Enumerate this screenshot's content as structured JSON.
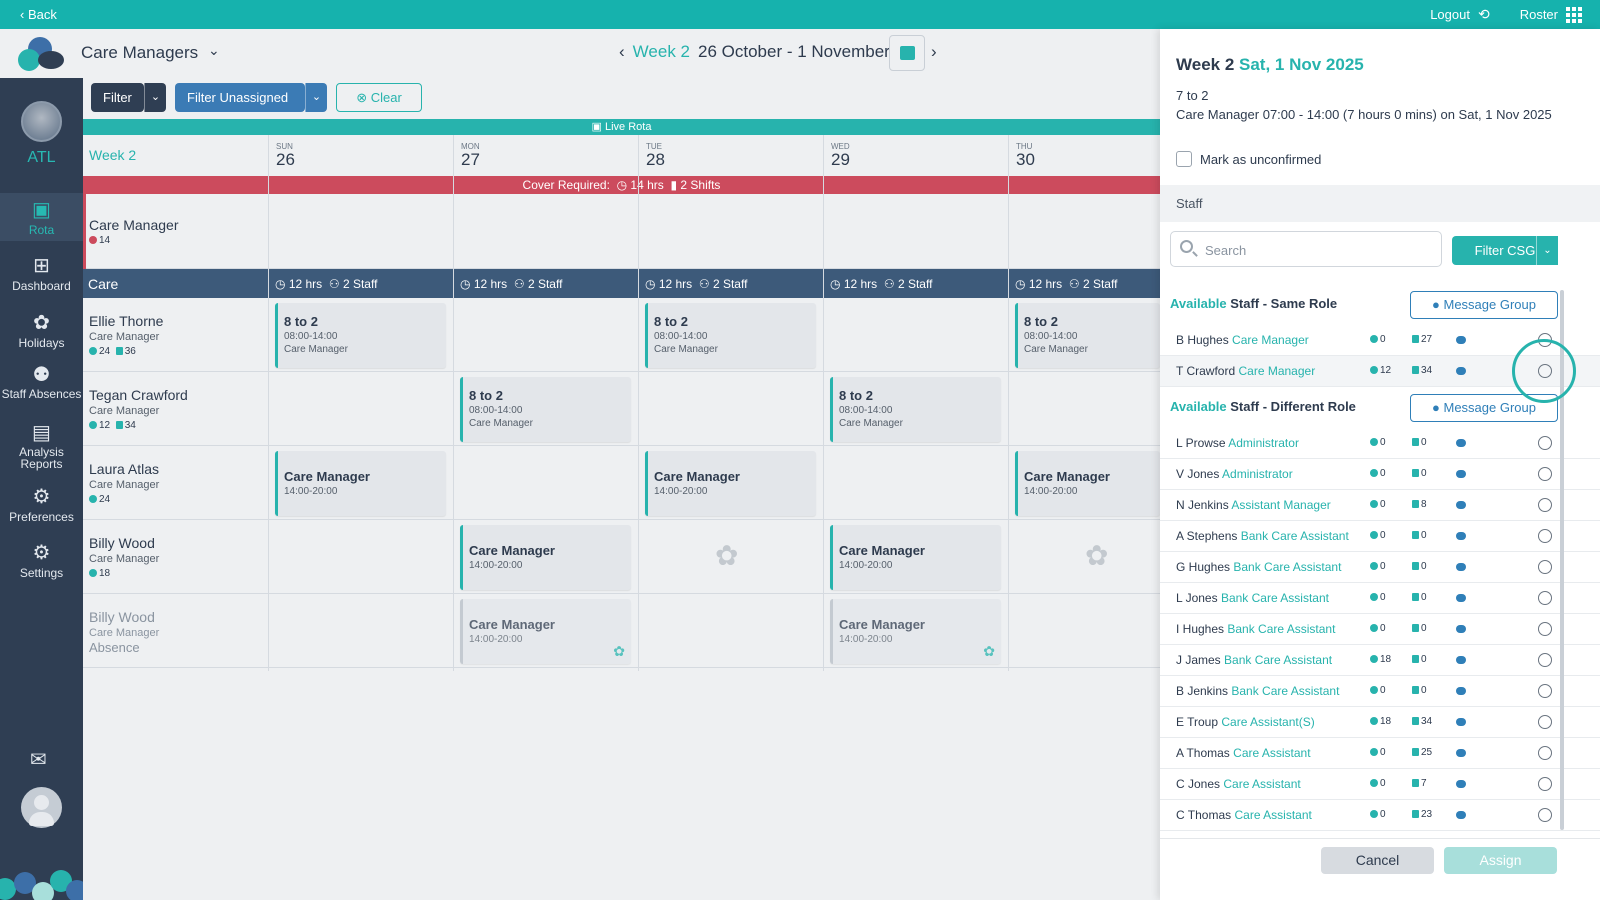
{
  "topbar": {
    "back_label": "‹ Back",
    "logout_label": "Logout",
    "roster_label": "Roster"
  },
  "sidebar": {
    "org_code": "ATL",
    "items": [
      {
        "label": "Rota",
        "icon": "calendar-check-icon"
      },
      {
        "label": "Dashboard",
        "icon": "dashboard-icon"
      },
      {
        "label": "Holidays",
        "icon": "palm-tree-icon"
      },
      {
        "label": "Staff Absences",
        "icon": "staff-absence-icon"
      },
      {
        "label": "Analysis Reports",
        "icon": "report-icon"
      },
      {
        "label": "Preferences",
        "icon": "user-preferences-icon"
      },
      {
        "label": "Settings",
        "icon": "gear-icon"
      }
    ]
  },
  "header": {
    "group": "Care Managers",
    "week": "Week 2",
    "range": "26 October - 1 November"
  },
  "filters": {
    "filter": "Filter",
    "filter_unassigned": "Filter Unassigned",
    "clear": "Clear"
  },
  "rota": {
    "live": "Live Rota",
    "week_label": "Week 2",
    "days": [
      {
        "name": "SUN",
        "date": "26"
      },
      {
        "name": "MON",
        "date": "27"
      },
      {
        "name": "TUE",
        "date": "28"
      },
      {
        "name": "WED",
        "date": "29"
      },
      {
        "name": "THU",
        "date": "30"
      }
    ],
    "cover": {
      "label": "Cover Required:",
      "hours": "14 hrs",
      "shifts": "2 Shifts"
    },
    "cm_row": {
      "name": "Care Manager",
      "hours": "14"
    },
    "care_head": {
      "label": "Care",
      "hours": "12 hrs",
      "staff": "2 Staff"
    },
    "staff": [
      {
        "name": "Ellie Thorne",
        "role": "Care Manager",
        "hours": "24",
        "shifts": "36"
      },
      {
        "name": "Tegan Crawford",
        "role": "Care Manager",
        "hours": "12",
        "shifts": "34"
      },
      {
        "name": "Laura Atlas",
        "role": "Care Manager",
        "hours": "24",
        "shifts": ""
      },
      {
        "name": "Billy Wood",
        "role": "Care Manager",
        "hours": "18",
        "shifts": ""
      },
      {
        "name": "Billy Wood",
        "role": "Care Manager",
        "absence": "Absence"
      }
    ],
    "shift_8to2": {
      "title": "8 to 2",
      "time": "08:00-14:00",
      "role": "Care Manager"
    },
    "shift_cm": {
      "title": "Care Manager",
      "time": "14:00-20:00"
    }
  },
  "panel": {
    "week": "Week 2",
    "date": "Sat, 1 Nov 2025",
    "shift_name": "7 to 2",
    "shift_desc": "Care Manager 07:00 - 14:00 (7 hours 0 mins) on Sat, 1 Nov 2025",
    "unconfirmed": "Mark as unconfirmed",
    "staff_label": "Staff",
    "search_placeholder": "Search",
    "filter_csg": "Filter CSG",
    "available": "Available",
    "same_role": "Staff - Same Role",
    "diff_role": "Staff - Different Role",
    "message_group": "Message Group",
    "same": [
      {
        "name": "B Hughes",
        "role": "Care Manager",
        "h": "0",
        "s": "27"
      },
      {
        "name": "T Crawford",
        "role": "Care Manager",
        "h": "12",
        "s": "34"
      }
    ],
    "different": [
      {
        "name": "L Prowse",
        "role": "Administrator",
        "h": "0",
        "s": "0"
      },
      {
        "name": "V Jones",
        "role": "Administrator",
        "h": "0",
        "s": "0"
      },
      {
        "name": "N Jenkins",
        "role": "Assistant Manager",
        "h": "0",
        "s": "8"
      },
      {
        "name": "A Stephens",
        "role": "Bank Care Assistant",
        "h": "0",
        "s": "0"
      },
      {
        "name": "G Hughes",
        "role": "Bank Care Assistant",
        "h": "0",
        "s": "0"
      },
      {
        "name": "L Jones",
        "role": "Bank Care Assistant",
        "h": "0",
        "s": "0"
      },
      {
        "name": "I Hughes",
        "role": "Bank Care Assistant",
        "h": "0",
        "s": "0"
      },
      {
        "name": "J James",
        "role": "Bank Care Assistant",
        "h": "18",
        "s": "0"
      },
      {
        "name": "B Jenkins",
        "role": "Bank Care Assistant",
        "h": "0",
        "s": "0"
      },
      {
        "name": "E Troup",
        "role": "Care Assistant(S)",
        "h": "18",
        "s": "34"
      },
      {
        "name": "A Thomas",
        "role": "Care Assistant",
        "h": "0",
        "s": "25"
      },
      {
        "name": "C Jones",
        "role": "Care Assistant",
        "h": "0",
        "s": "7"
      },
      {
        "name": "C Thomas",
        "role": "Care Assistant",
        "h": "0",
        "s": "23"
      }
    ],
    "cancel": "Cancel",
    "assign": "Assign"
  },
  "colors": {
    "teal": "#16b2ad",
    "navy": "#2f3e53",
    "red": "#cc4b5d",
    "blue": "#3b7bb5"
  }
}
